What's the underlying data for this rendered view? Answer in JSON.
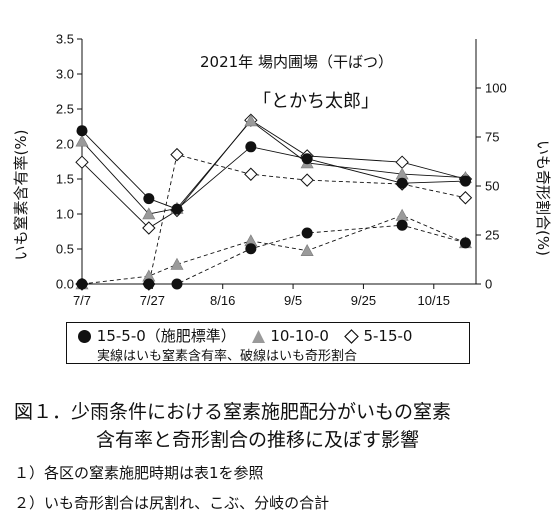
{
  "chart_data": {
    "type": "line",
    "annotation_line1": "2021年 場内圃場（干ばつ）",
    "annotation_line2": "「とかち太郎」",
    "y_left_label": "いも窒素含有率(%)",
    "y_right_label": "いも奇形割合(%)",
    "y_left_lim": [
      0,
      3.5
    ],
    "y_left_ticks": [
      "0.0",
      "0.5",
      "1.0",
      "1.5",
      "2.0",
      "2.5",
      "3.0",
      "3.5"
    ],
    "y_right_lim": [
      0,
      125
    ],
    "y_right_ticks": [
      "0",
      "25",
      "50",
      "75",
      "100"
    ],
    "x_ticks": [
      "7/7",
      "7/27",
      "8/16",
      "9/5",
      "9/25",
      "10/15"
    ],
    "x_tick_days": [
      0,
      20,
      40,
      60,
      80,
      100
    ],
    "x_lim": [
      0,
      112
    ],
    "sampling_days": [
      0,
      19,
      27,
      48,
      64,
      91,
      109
    ],
    "series": [
      {
        "name": "15-5-0（施肥標準）",
        "marker": "circle",
        "color": "#111111",
        "nitrogen": [
          2.19,
          1.22,
          1.07,
          1.96,
          1.79,
          1.44,
          1.47
        ],
        "malformation": [
          0,
          0,
          0,
          18,
          26,
          30,
          21
        ]
      },
      {
        "name": "10-10-0",
        "marker": "triangle",
        "color": "#9a9a9a",
        "nitrogen": [
          2.04,
          1.0,
          1.08,
          2.33,
          1.73,
          1.57,
          1.52
        ],
        "malformation": [
          0,
          4,
          10,
          22,
          17,
          35,
          21
        ]
      },
      {
        "name": "5-15-0",
        "marker": "diamond",
        "color": "#ffffff",
        "nitrogen": [
          1.74,
          0.8,
          1.05,
          2.34,
          1.83,
          1.74,
          1.5
        ],
        "malformation": [
          0,
          0,
          66,
          56,
          53,
          51,
          44
        ]
      }
    ],
    "legend_note": "実線はいも窒素含有率、破線はいも奇形割合",
    "grid": false
  },
  "caption": {
    "line1": "図１．少雨条件における窒素施肥配分がいもの窒素",
    "line2": "含有率と奇形割合の推移に及ぼす影響"
  },
  "notes": [
    "１）各区の窒素施肥時期は表1を参照",
    "２）いも奇形割合は尻割れ、こぶ、分岐の合計"
  ]
}
